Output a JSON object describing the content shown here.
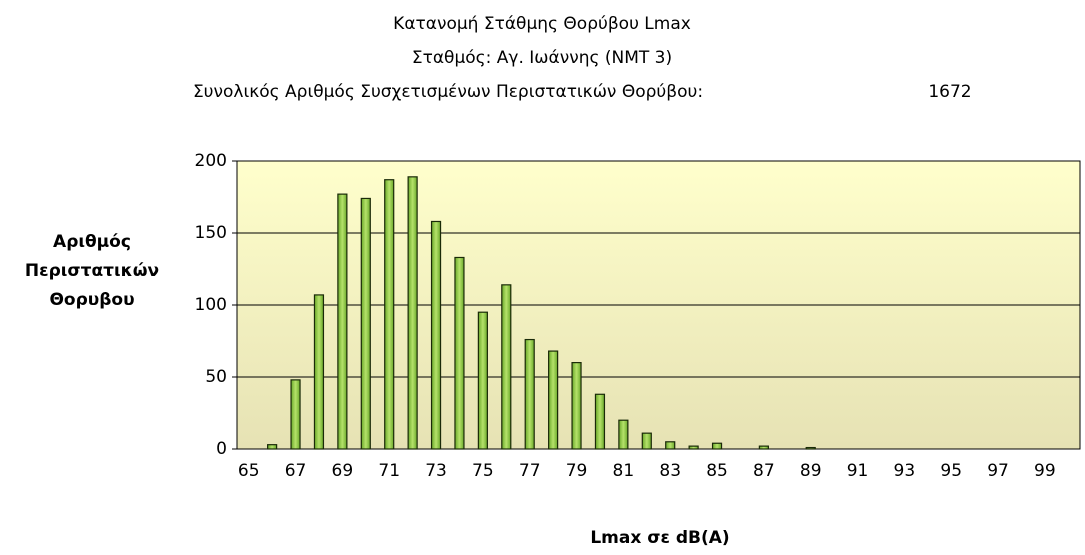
{
  "chart_data": {
    "type": "bar",
    "title": [
      "Κατανομή Στάθμης Θορύβου Lmax",
      "Σταθμός: Αγ. Ιωάννης (ΝΜΤ 3)"
    ],
    "subtitle": "Συνολικός Αριθμός Συσχετισμένων Περιστατικών Θορύβου:",
    "total": 1672,
    "x_label": "Lmax σε dB(A)",
    "y_label": [
      "Αριθμός",
      "Περιστατικών",
      "Θορυβου"
    ],
    "categories": [
      "65",
      null,
      "67",
      null,
      "69",
      null,
      "71",
      null,
      "73",
      null,
      "75",
      null,
      "77",
      null,
      "79",
      null,
      "81",
      null,
      "83",
      null,
      "85",
      null,
      "87",
      null,
      "89",
      null,
      "91",
      null,
      "93",
      null,
      "95",
      null,
      "97",
      null,
      "99",
      null
    ],
    "values": [
      0,
      3,
      48,
      107,
      177,
      174,
      187,
      189,
      158,
      133,
      95,
      114,
      76,
      68,
      60,
      38,
      20,
      11,
      5,
      2,
      4,
      0,
      2,
      0,
      1,
      0,
      0,
      0,
      0,
      0,
      0,
      0,
      0,
      0,
      0,
      0
    ],
    "color": "#8dc63f",
    "ylim": [
      0,
      200
    ],
    "yticks": [
      0,
      50,
      100,
      150,
      200
    ],
    "grid": true
  }
}
